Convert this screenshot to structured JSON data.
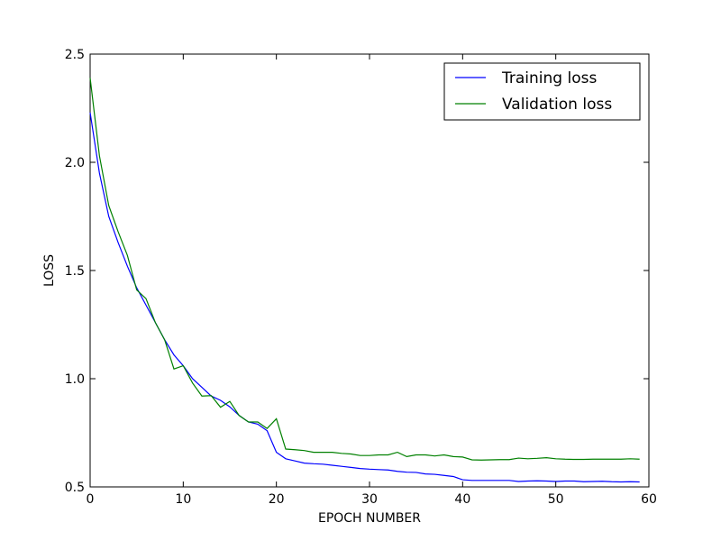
{
  "chart_data": {
    "type": "line",
    "xlabel": "EPOCH NUMBER",
    "ylabel": "LOSS",
    "xlim": [
      0,
      60
    ],
    "ylim": [
      0.5,
      2.5
    ],
    "x_ticks": [
      0,
      10,
      20,
      30,
      40,
      50,
      60
    ],
    "x_tick_labels": [
      "0",
      "10",
      "20",
      "30",
      "40",
      "50",
      "60"
    ],
    "y_ticks": [
      0.5,
      1.0,
      1.5,
      2.0,
      2.5
    ],
    "y_tick_labels": [
      "0.5",
      "1.0",
      "1.5",
      "2.0",
      "2.5"
    ],
    "grid": false,
    "legend_position": "top-right",
    "x": [
      0,
      1,
      2,
      3,
      4,
      5,
      6,
      7,
      8,
      9,
      10,
      11,
      12,
      13,
      14,
      15,
      16,
      17,
      18,
      19,
      20,
      21,
      22,
      23,
      24,
      25,
      26,
      27,
      28,
      29,
      30,
      31,
      32,
      33,
      34,
      35,
      36,
      37,
      38,
      39,
      40,
      41,
      42,
      43,
      44,
      45,
      46,
      47,
      48,
      49,
      50,
      51,
      52,
      53,
      54,
      55,
      56,
      57,
      58,
      59
    ],
    "series": [
      {
        "name": "Training loss",
        "color": "#0000ff",
        "values": [
          2.23,
          1.95,
          1.75,
          1.63,
          1.52,
          1.42,
          1.34,
          1.26,
          1.18,
          1.11,
          1.06,
          1.0,
          0.96,
          0.92,
          0.9,
          0.87,
          0.83,
          0.8,
          0.79,
          0.76,
          0.66,
          0.63,
          0.62,
          0.61,
          0.607,
          0.605,
          0.6,
          0.595,
          0.59,
          0.585,
          0.582,
          0.58,
          0.578,
          0.572,
          0.568,
          0.567,
          0.56,
          0.558,
          0.553,
          0.548,
          0.533,
          0.53,
          0.53,
          0.53,
          0.53,
          0.53,
          0.525,
          0.527,
          0.528,
          0.527,
          0.525,
          0.527,
          0.527,
          0.524,
          0.525,
          0.526,
          0.524,
          0.523,
          0.524,
          0.523
        ]
      },
      {
        "name": "Validation loss",
        "color": "#008000",
        "values": [
          2.39,
          2.03,
          1.8,
          1.68,
          1.57,
          1.41,
          1.37,
          1.26,
          1.18,
          1.045,
          1.06,
          0.98,
          0.92,
          0.922,
          0.868,
          0.895,
          0.83,
          0.8,
          0.8,
          0.77,
          0.815,
          0.675,
          0.672,
          0.668,
          0.66,
          0.66,
          0.66,
          0.655,
          0.652,
          0.645,
          0.645,
          0.648,
          0.648,
          0.66,
          0.64,
          0.648,
          0.648,
          0.643,
          0.648,
          0.64,
          0.638,
          0.625,
          0.624,
          0.625,
          0.626,
          0.626,
          0.633,
          0.63,
          0.632,
          0.635,
          0.63,
          0.628,
          0.627,
          0.627,
          0.628,
          0.628,
          0.628,
          0.628,
          0.63,
          0.628
        ]
      }
    ]
  }
}
